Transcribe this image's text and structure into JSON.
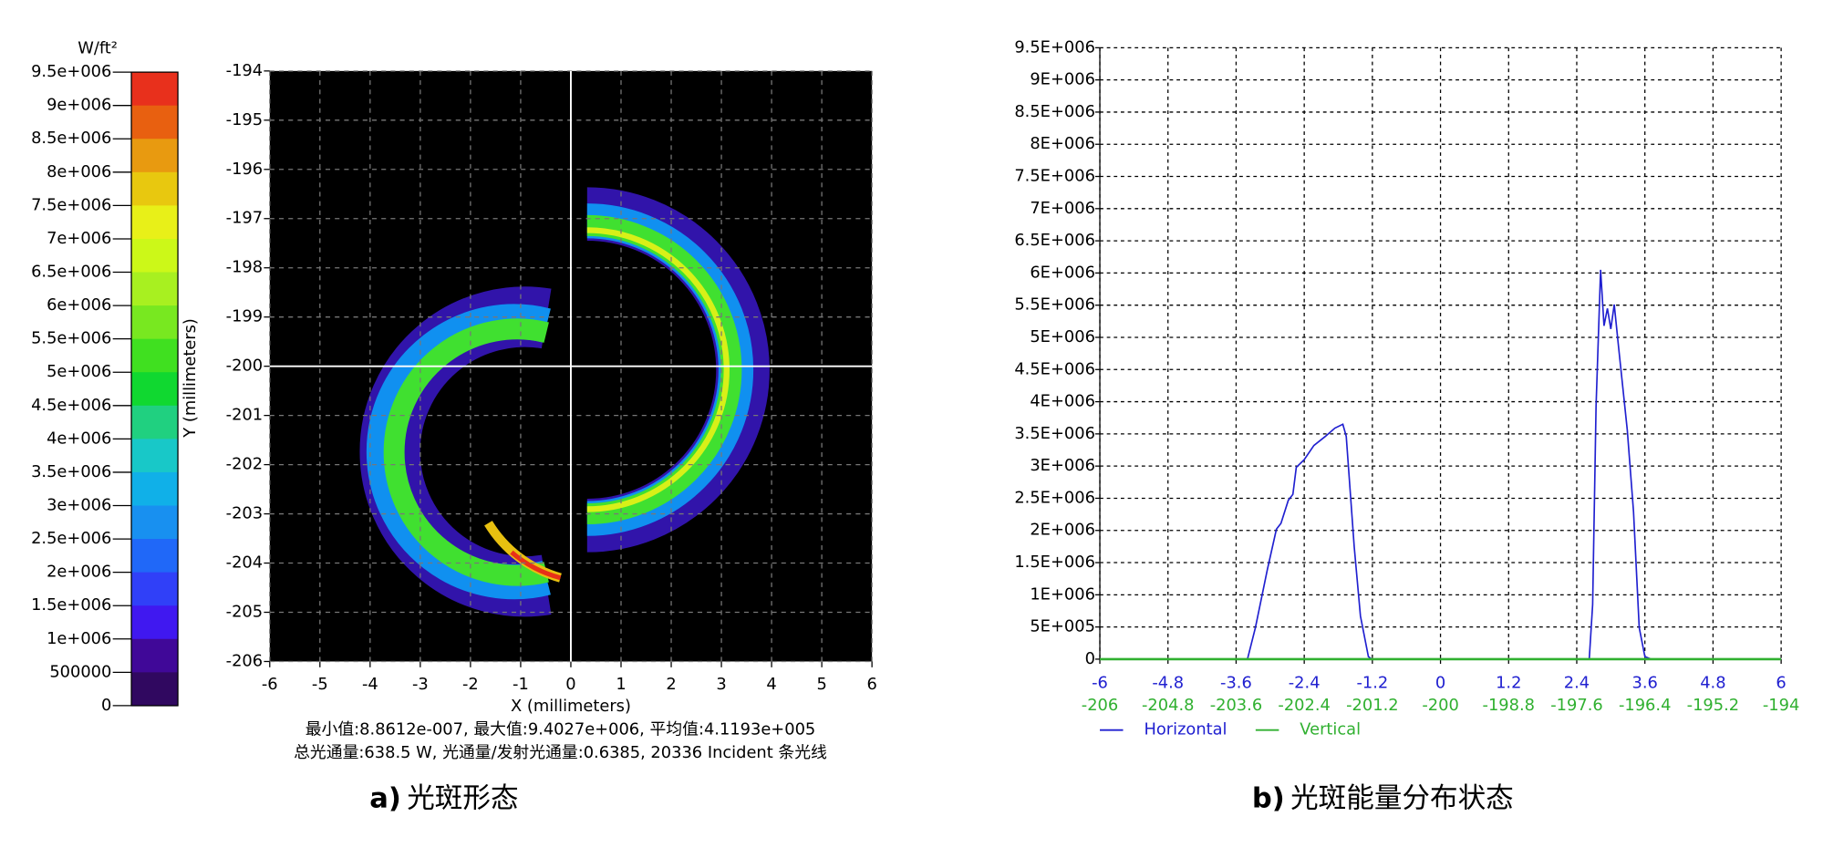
{
  "chart_data": [
    {
      "type": "heatmap",
      "colorbar": {
        "label": "W/ft²",
        "lim": [
          0,
          9500000
        ],
        "ticks": [
          {
            "value": 9500000,
            "label": "9.5e+006"
          },
          {
            "value": 9000000,
            "label": "9e+006"
          },
          {
            "value": 8500000,
            "label": "8.5e+006"
          },
          {
            "value": 8000000,
            "label": "8e+006"
          },
          {
            "value": 7500000,
            "label": "7.5e+006"
          },
          {
            "value": 7000000,
            "label": "7e+006"
          },
          {
            "value": 6500000,
            "label": "6.5e+006"
          },
          {
            "value": 6000000,
            "label": "6e+006"
          },
          {
            "value": 5500000,
            "label": "5.5e+006"
          },
          {
            "value": 5000000,
            "label": "5e+006"
          },
          {
            "value": 4500000,
            "label": "4.5e+006"
          },
          {
            "value": 4000000,
            "label": "4e+006"
          },
          {
            "value": 3500000,
            "label": "3.5e+006"
          },
          {
            "value": 3000000,
            "label": "3e+006"
          },
          {
            "value": 2500000,
            "label": "2.5e+006"
          },
          {
            "value": 2000000,
            "label": "2e+006"
          },
          {
            "value": 1500000,
            "label": "1.5e+006"
          },
          {
            "value": 1000000,
            "label": "1e+006"
          },
          500000,
          0
        ],
        "colors": [
          "#e8301c",
          "#e86010",
          "#e89a10",
          "#e8c80f",
          "#e8f018",
          "#ccf818",
          "#a8f020",
          "#78e820",
          "#40e020",
          "#10d830",
          "#20d080",
          "#18c8c8",
          "#10b0e8",
          "#1890f0",
          "#2068f8",
          "#3040f8",
          "#4018f0",
          "#400898",
          "#300860"
        ]
      },
      "xlabel": "X (millimeters)",
      "ylabel": "Y (millimeters)",
      "xlim": [
        -6,
        6
      ],
      "xticks": [
        -6,
        -5,
        -4,
        -3,
        -2,
        -1,
        0,
        1,
        2,
        3,
        4,
        5,
        6
      ],
      "ylim": [
        -206,
        -194
      ],
      "yticks": [
        -206,
        -205,
        -204,
        -203,
        -202,
        -201,
        -200,
        -199,
        -198,
        -197,
        -196,
        -195,
        -194
      ],
      "crosshair": {
        "x": 0,
        "y": -200
      },
      "grid": true,
      "annotations": [
        "最小值:8.8612e-007, 最大值:9.4027e+006, 平均值:4.1193e+005",
        "总光通量:638.5 W, 光通量/发射光通量:0.6385, 20336 Incident 条光线"
      ],
      "caption_tag": "a)",
      "caption": "光斑形态"
    },
    {
      "type": "line",
      "xlim": [
        -6,
        6
      ],
      "xticks": [
        -6,
        -4.8,
        -3.6,
        -2.4,
        -1.2,
        0,
        1.2,
        2.4,
        3.6,
        4.8,
        6
      ],
      "x2lim": [
        -206,
        -194
      ],
      "x2ticks": [
        -206,
        -204.8,
        -203.6,
        -202.4,
        -201.2,
        -200,
        -198.8,
        -197.6,
        -196.4,
        -195.2,
        -194
      ],
      "ylim": [
        0,
        9500000
      ],
      "yticks": [
        0,
        {
          "value": 500000,
          "label": "5E+005"
        },
        {
          "value": 1000000,
          "label": "1E+006"
        },
        {
          "value": 1500000,
          "label": "1.5E+006"
        },
        {
          "value": 2000000,
          "label": "2E+006"
        },
        {
          "value": 2500000,
          "label": "2.5E+006"
        },
        {
          "value": 3000000,
          "label": "3E+006"
        },
        {
          "value": 3500000,
          "label": "3.5E+006"
        },
        {
          "value": 4000000,
          "label": "4E+006"
        },
        {
          "value": 4500000,
          "label": "4.5E+006"
        },
        {
          "value": 5000000,
          "label": "5E+006"
        },
        {
          "value": 5500000,
          "label": "5.5E+006"
        },
        {
          "value": 6000000,
          "label": "6E+006"
        },
        {
          "value": 6500000,
          "label": "6.5E+006"
        },
        {
          "value": 7000000,
          "label": "7E+006"
        },
        {
          "value": 7500000,
          "label": "7.5E+006"
        },
        {
          "value": 8000000,
          "label": "8E+006"
        },
        {
          "value": 8500000,
          "label": "8.5E+006"
        },
        {
          "value": 9000000,
          "label": "9E+006"
        },
        {
          "value": 9500000,
          "label": "9.5E+006"
        }
      ],
      "grid": true,
      "legend": "bottom-left",
      "series": [
        {
          "name": "Horizontal",
          "color": "#2020d0",
          "x": [
            -6,
            -3.4,
            -3.26,
            -3.05,
            -2.89,
            -2.81,
            -2.68,
            -2.6,
            -2.54,
            -2.4,
            -2.23,
            -2.03,
            -1.86,
            -1.72,
            -1.66,
            -1.52,
            -1.41,
            -1.27,
            -1.21,
            2.62,
            2.68,
            2.74,
            2.82,
            2.88,
            2.94,
            3.0,
            3.06,
            3.14,
            3.29,
            3.4,
            3.5,
            3.6,
            3.71,
            6
          ],
          "values": [
            0,
            0,
            490000,
            1390000,
            2020000,
            2110000,
            2470000,
            2560000,
            2980000,
            3100000,
            3320000,
            3460000,
            3590000,
            3650000,
            3460000,
            1750000,
            670000,
            40000,
            0,
            0,
            850000,
            3930000,
            6050000,
            5180000,
            5450000,
            5130000,
            5510000,
            4820000,
            3560000,
            2290000,
            490000,
            40000,
            0,
            0
          ]
        },
        {
          "name": "Vertical",
          "color": "#30b030",
          "axis": "x2",
          "x": [
            -206,
            -194
          ],
          "values": [
            0,
            0
          ]
        }
      ],
      "caption_tag": "b)",
      "caption": "光斑能量分布状态"
    }
  ]
}
